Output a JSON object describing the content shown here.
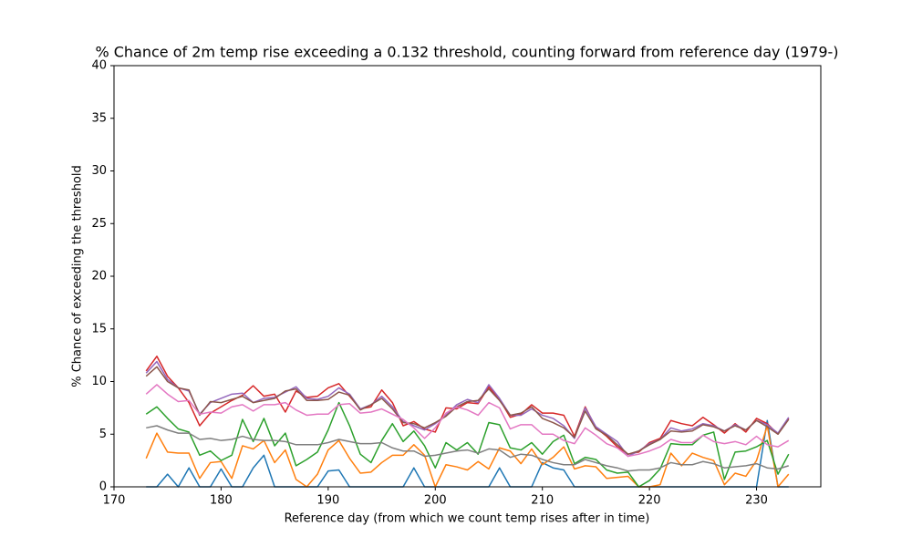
{
  "chart_data": {
    "type": "line",
    "title": "% Chance of 2m temp rise exceeding a 0.132 threshold, counting forward from reference day (1979-)",
    "xlabel": "Reference day (from which we count temp rises after in time)",
    "ylabel": "% Chance of exceeding the threshold",
    "x": [
      173,
      174,
      175,
      176,
      177,
      178,
      179,
      180,
      181,
      182,
      183,
      184,
      185,
      186,
      187,
      188,
      189,
      190,
      191,
      192,
      193,
      194,
      195,
      196,
      197,
      198,
      199,
      200,
      201,
      202,
      203,
      204,
      205,
      206,
      207,
      208,
      209,
      210,
      211,
      212,
      213,
      214,
      215,
      216,
      217,
      218,
      219,
      220,
      221,
      222,
      223,
      224,
      225,
      226,
      227,
      228,
      229,
      230,
      231,
      232,
      233
    ],
    "xlim": [
      170,
      236
    ],
    "xticks": [
      170,
      180,
      190,
      200,
      210,
      220,
      230
    ],
    "ylim": [
      0,
      40
    ],
    "yticks": [
      0,
      5,
      10,
      15,
      20,
      25,
      30,
      35,
      40
    ],
    "series": [
      {
        "color": "#1f77b4",
        "values": [
          0,
          0,
          1.2,
          0,
          1.8,
          0,
          0,
          1.7,
          0,
          0,
          1.8,
          3.0,
          0,
          0,
          0,
          0,
          0,
          1.5,
          1.6,
          0,
          0,
          0,
          0,
          0,
          0,
          1.8,
          0,
          0,
          0,
          0,
          0,
          0,
          0,
          1.8,
          0,
          0,
          0,
          2.3,
          1.8,
          1.6,
          0,
          0,
          0,
          0,
          0,
          0,
          0,
          0,
          0,
          0,
          0,
          0,
          0,
          0,
          0,
          0,
          0,
          0,
          6.3,
          0,
          0
        ]
      },
      {
        "color": "#ff7f0e",
        "values": [
          2.7,
          5.1,
          3.3,
          3.2,
          3.2,
          0.8,
          2.3,
          2.4,
          0.8,
          3.9,
          3.6,
          4.4,
          2.3,
          3.5,
          0.7,
          0,
          1.2,
          3.5,
          4.4,
          2.7,
          1.3,
          1.4,
          2.3,
          3.0,
          3.0,
          4.0,
          3.0,
          0,
          2.1,
          1.9,
          1.6,
          2.4,
          1.7,
          3.7,
          3.4,
          2.2,
          3.6,
          2.1,
          2.8,
          3.8,
          1.7,
          2.0,
          1.9,
          0.8,
          0.9,
          1.0,
          0,
          0,
          0.2,
          3.2,
          2.0,
          3.2,
          2.8,
          2.5,
          0.2,
          1.3,
          1.0,
          2.5,
          5.8,
          0,
          1.2
        ]
      },
      {
        "color": "#2ca02c",
        "values": [
          6.9,
          7.6,
          6.5,
          5.5,
          5.2,
          3.0,
          3.4,
          2.5,
          3.0,
          6.4,
          4.3,
          6.5,
          3.9,
          5.1,
          2.0,
          2.6,
          3.3,
          5.4,
          8.0,
          5.8,
          3.1,
          2.3,
          4.4,
          6.0,
          4.3,
          5.3,
          3.9,
          1.8,
          4.2,
          3.5,
          4.2,
          3.1,
          6.1,
          5.9,
          3.7,
          3.5,
          4.2,
          3.1,
          4.3,
          4.9,
          2.2,
          2.8,
          2.6,
          1.6,
          1.3,
          1.4,
          0,
          0.6,
          1.7,
          4.1,
          4.0,
          4.0,
          4.9,
          5.2,
          0.7,
          3.3,
          3.4,
          3.8,
          4.4,
          1.2,
          3.1
        ]
      },
      {
        "color": "#d62728",
        "values": [
          11.0,
          12.4,
          10.5,
          9.4,
          8.0,
          5.8,
          7.0,
          7.6,
          8.2,
          8.7,
          9.6,
          8.6,
          8.8,
          7.1,
          9.1,
          8.5,
          8.6,
          9.4,
          9.8,
          8.6,
          7.4,
          7.6,
          9.2,
          8.0,
          5.8,
          6.2,
          5.5,
          5.2,
          7.5,
          7.4,
          8.0,
          7.9,
          9.5,
          8.3,
          6.6,
          6.9,
          7.8,
          7.0,
          7.0,
          6.8,
          4.8,
          7.6,
          5.6,
          4.8,
          3.8,
          3.1,
          3.3,
          4.2,
          4.6,
          6.3,
          6.0,
          5.8,
          6.6,
          5.9,
          5.1,
          6.0,
          5.2,
          6.5,
          6.0,
          5.0,
          6.5
        ]
      },
      {
        "color": "#9467bd",
        "values": [
          10.8,
          11.9,
          10.2,
          9.4,
          9.1,
          6.9,
          8.0,
          8.4,
          8.8,
          8.9,
          8.0,
          8.4,
          8.5,
          9.0,
          9.5,
          8.4,
          8.3,
          8.6,
          9.4,
          8.8,
          7.4,
          7.8,
          8.6,
          7.6,
          6.2,
          5.8,
          5.4,
          6.0,
          6.8,
          7.8,
          8.3,
          8.0,
          9.7,
          8.4,
          6.8,
          6.8,
          7.4,
          6.8,
          6.5,
          5.8,
          4.6,
          7.5,
          5.7,
          5.0,
          4.3,
          2.9,
          3.4,
          4.1,
          4.5,
          5.6,
          5.3,
          5.5,
          6.0,
          5.8,
          5.3,
          5.9,
          5.4,
          6.3,
          5.9,
          5.1,
          6.6
        ]
      },
      {
        "color": "#8c564b",
        "values": [
          10.5,
          11.4,
          10.0,
          9.4,
          9.2,
          6.8,
          8.1,
          8.0,
          8.3,
          8.6,
          8.0,
          8.2,
          8.4,
          9.1,
          9.3,
          8.2,
          8.2,
          8.3,
          9.0,
          8.7,
          7.3,
          7.8,
          8.4,
          7.4,
          6.1,
          6.0,
          5.6,
          6.1,
          6.7,
          7.6,
          8.1,
          8.2,
          9.3,
          8.2,
          6.8,
          7.0,
          7.6,
          6.5,
          6.1,
          5.6,
          4.7,
          7.2,
          5.5,
          4.9,
          4.0,
          3.1,
          3.4,
          4.0,
          4.5,
          5.3,
          5.2,
          5.3,
          5.9,
          5.7,
          5.3,
          5.8,
          5.4,
          6.3,
          5.7,
          5.0,
          6.4
        ]
      },
      {
        "color": "#e377c2",
        "values": [
          8.8,
          9.7,
          8.8,
          8.1,
          8.2,
          6.9,
          7.1,
          7.0,
          7.6,
          7.8,
          7.2,
          7.8,
          7.8,
          8.0,
          7.3,
          6.8,
          6.9,
          6.9,
          7.8,
          7.9,
          7.0,
          7.1,
          7.4,
          6.9,
          6.4,
          5.6,
          4.6,
          5.6,
          7.0,
          7.6,
          7.3,
          6.8,
          8.0,
          7.5,
          5.5,
          5.9,
          5.9,
          5.0,
          5.0,
          4.4,
          4.1,
          5.6,
          4.9,
          4.1,
          3.7,
          2.9,
          3.1,
          3.4,
          3.8,
          4.5,
          4.2,
          4.2,
          4.9,
          4.3,
          4.1,
          4.3,
          4.0,
          4.8,
          4.0,
          3.8,
          4.4
        ]
      },
      {
        "color": "#7f7f7f",
        "values": [
          5.6,
          5.8,
          5.4,
          5.1,
          5.1,
          4.5,
          4.6,
          4.4,
          4.5,
          4.8,
          4.5,
          4.4,
          4.4,
          4.3,
          4.0,
          4.0,
          4.0,
          4.2,
          4.5,
          4.3,
          4.1,
          4.1,
          4.2,
          3.7,
          3.4,
          3.4,
          2.9,
          3.0,
          3.2,
          3.4,
          3.5,
          3.2,
          3.6,
          3.5,
          2.8,
          3.1,
          3.0,
          2.6,
          2.3,
          2.1,
          2.1,
          2.6,
          2.3,
          2.0,
          1.8,
          1.5,
          1.6,
          1.6,
          1.8,
          2.3,
          2.1,
          2.1,
          2.4,
          2.2,
          1.8,
          1.9,
          2.0,
          2.2,
          1.8,
          1.7,
          2.0
        ]
      }
    ]
  }
}
